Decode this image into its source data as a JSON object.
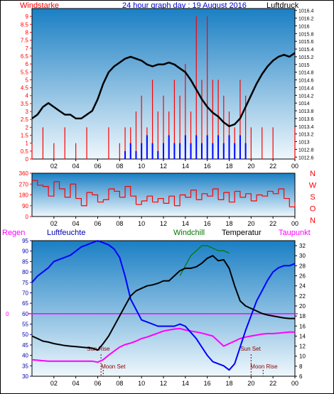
{
  "header": {
    "left_label": "Windstarke",
    "title": "24 hour graph day : 19 August 2016",
    "right_label": "Luftdruck"
  },
  "colors": {
    "panel_top": "#1a7fc4",
    "panel_bottom": "#eef7fc",
    "pressure": "#000000",
    "gust": "#ff0000",
    "wind": "#0000ff",
    "direction": "#ff0000",
    "humidity": "#0000ff",
    "temperature": "#000000",
    "windchill": "#007700",
    "dewpoint": "#ff00ff",
    "rain": "#ff00ff",
    "sun": "#880000",
    "moon": "#880000",
    "axis_red": "#ff0000",
    "axis_blue": "#0000aa",
    "title_blue": "#0000cc"
  },
  "x_ticks": [
    "02",
    "04",
    "06",
    "08",
    "10",
    "12",
    "14",
    "16",
    "18",
    "20",
    "22",
    "00"
  ],
  "chart_data": [
    {
      "type": "line",
      "name": "wind-pressure",
      "left_axis": {
        "label": "Windstarke",
        "ylim": [
          0,
          9.5
        ],
        "ticks": [
          "0",
          "0.5",
          "1",
          "1.5",
          "2",
          "2.5",
          "3",
          "3.5",
          "4",
          "4.5",
          "5",
          "5.5",
          "6",
          "6.5",
          "7",
          "7.5",
          "8",
          "8.5",
          "9"
        ]
      },
      "right_axis": {
        "label": "Luftdruck",
        "ylim": [
          1012.55,
          1016.45
        ],
        "ticks": [
          "1012.6",
          "1012.8",
          "1013",
          "1013.2",
          "1013.4",
          "1013.6",
          "1013.8",
          "1014",
          "1014.2",
          "1014.4",
          "1014.6",
          "1014.8",
          "1015",
          "1015.2",
          "1015.4",
          "1015.6",
          "1015.8",
          "1016",
          "1016.2",
          "1016.4"
        ]
      },
      "xlim": [
        0,
        24
      ],
      "series": [
        {
          "name": "Luftdruck",
          "axis": "right",
          "x": [
            0,
            0.5,
            1,
            1.5,
            2,
            2.5,
            3,
            3.5,
            4,
            4.5,
            5,
            5.5,
            6,
            6.5,
            7,
            7.5,
            8,
            8.5,
            9,
            9.5,
            10,
            10.5,
            11,
            11.5,
            12,
            12.5,
            13,
            13.5,
            14,
            14.5,
            15,
            15.5,
            16,
            16.5,
            17,
            17.5,
            18,
            18.5,
            19,
            19.5,
            20,
            20.5,
            21,
            21.5,
            22,
            22.5,
            23,
            23.5,
            24
          ],
          "y": [
            1013.6,
            1013.7,
            1013.9,
            1014.0,
            1013.9,
            1013.8,
            1013.7,
            1013.7,
            1013.6,
            1013.6,
            1013.7,
            1013.8,
            1014.1,
            1014.5,
            1014.8,
            1014.95,
            1015.05,
            1015.15,
            1015.2,
            1015.15,
            1015.1,
            1015.0,
            1014.95,
            1015.0,
            1015.0,
            1015.05,
            1015.0,
            1014.9,
            1014.8,
            1014.6,
            1014.35,
            1014.1,
            1013.9,
            1013.75,
            1013.65,
            1013.5,
            1013.4,
            1013.45,
            1013.6,
            1013.9,
            1014.2,
            1014.5,
            1014.75,
            1014.95,
            1015.1,
            1015.2,
            1015.25,
            1015.2,
            1015.3
          ]
        },
        {
          "name": "Gust",
          "axis": "left",
          "x": [
            0,
            1,
            2,
            3,
            4,
            5,
            6,
            7,
            8,
            8.5,
            9,
            9.5,
            10,
            10.5,
            11,
            11.5,
            12,
            12.5,
            13,
            13.5,
            14,
            14.5,
            15,
            15.5,
            16,
            16.5,
            17,
            17.5,
            18,
            18.5,
            19,
            19.5,
            20,
            21,
            22,
            23,
            24
          ],
          "y": [
            1,
            2,
            1,
            2,
            1,
            2,
            0,
            2,
            1,
            2,
            2,
            3,
            4,
            2,
            5,
            3,
            4,
            3,
            5,
            4,
            6,
            3,
            9,
            5,
            9,
            5,
            5,
            4,
            3,
            2,
            5,
            4,
            2,
            2,
            2,
            0,
            2
          ]
        },
        {
          "name": "Wind",
          "axis": "left",
          "x": [
            8.5,
            9,
            9.5,
            10,
            10.5,
            11,
            11.5,
            12,
            12.5,
            13,
            13.5,
            14,
            14.5,
            15,
            15.5,
            16,
            16.5,
            17,
            17.5,
            18,
            18.5,
            19,
            19.5
          ],
          "y": [
            0.5,
            1,
            0.5,
            1,
            1.5,
            1,
            0.5,
            1,
            1.5,
            1,
            1,
            1.5,
            1,
            1.5,
            1,
            1.5,
            1,
            1.5,
            1,
            1.5,
            1,
            1.5,
            1
          ]
        }
      ]
    },
    {
      "type": "line",
      "name": "wind-direction",
      "left_axis": {
        "ylim": [
          0,
          360
        ],
        "ticks": [
          "0",
          "90",
          "180",
          "270",
          "360"
        ]
      },
      "right_axis": {
        "labels": [
          "N",
          "W",
          "S",
          "O",
          "N"
        ]
      },
      "xlim": [
        0,
        24
      ],
      "series": [
        {
          "name": "Windrichtung",
          "axis": "left",
          "x": [
            0,
            0.5,
            1,
            1.5,
            2,
            2.5,
            3,
            3.5,
            4,
            4.5,
            5,
            5.5,
            6,
            6.5,
            7,
            7.5,
            8,
            8.5,
            9,
            9.5,
            10,
            10.5,
            11,
            11.5,
            12,
            12.5,
            13,
            13.5,
            14,
            14.5,
            15,
            15.5,
            16,
            16.5,
            17,
            17.5,
            18,
            18.5,
            19,
            19.5,
            20,
            20.5,
            21,
            21.5,
            22,
            22.5,
            23,
            23.5,
            24
          ],
          "y": [
            300,
            260,
            250,
            170,
            290,
            230,
            160,
            270,
            150,
            90,
            200,
            180,
            120,
            140,
            230,
            210,
            160,
            250,
            170,
            100,
            130,
            170,
            120,
            150,
            110,
            170,
            90,
            180,
            160,
            220,
            140,
            190,
            170,
            230,
            140,
            200,
            120,
            210,
            160,
            190,
            130,
            180,
            170,
            210,
            190,
            230,
            150,
            80,
            120
          ]
        }
      ]
    },
    {
      "type": "line",
      "name": "humidity-temperature",
      "left_axis": {
        "label": "Luftfeuchte",
        "ylim": [
          30,
          95
        ],
        "ticks": [
          "30",
          "35",
          "40",
          "45",
          "50",
          "55",
          "60",
          "65",
          "70",
          "75",
          "80",
          "85",
          "90",
          "95"
        ]
      },
      "right_axis": {
        "label": "Temperatur",
        "ylim": [
          6,
          33
        ],
        "ticks": [
          "6",
          "8",
          "10",
          "12",
          "14",
          "16",
          "18",
          "20",
          "22",
          "24",
          "26",
          "28",
          "30",
          "32"
        ]
      },
      "rain_axis": {
        "label": "Regen",
        "tick": "0"
      },
      "xlim": [
        0,
        24
      ],
      "legend": [
        "Regen",
        "Luftfeuchte",
        "Windchill",
        "Temperatur",
        "Taupunkt"
      ],
      "annotations": [
        "Sun Rise",
        "Moon Set",
        "Sun Set",
        "Moon Rise"
      ],
      "series": [
        {
          "name": "Luftfeuchte",
          "axis": "left",
          "x": [
            0,
            0.5,
            1,
            1.5,
            2,
            2.5,
            3,
            3.5,
            4,
            4.5,
            5,
            5.5,
            6,
            6.5,
            7,
            7.5,
            8,
            8.5,
            9,
            9.5,
            10,
            10.5,
            11,
            11.5,
            12,
            12.5,
            13,
            13.5,
            14,
            14.5,
            15,
            15.5,
            16,
            16.5,
            17,
            17.5,
            18,
            18.5,
            19,
            19.5,
            20,
            20.5,
            21,
            21.5,
            22,
            22.5,
            23,
            23.5,
            24
          ],
          "y": [
            75,
            78,
            80,
            82,
            85,
            86,
            87,
            88,
            90,
            92,
            93,
            94,
            95,
            94,
            93,
            91,
            87,
            78,
            67,
            62,
            57,
            56,
            55,
            54,
            54,
            54,
            54,
            55,
            54,
            51,
            48,
            44,
            40,
            37,
            36,
            35,
            33,
            36,
            44,
            52,
            59,
            66,
            71,
            76,
            80,
            82,
            83,
            83,
            84
          ]
        },
        {
          "name": "Temperatur",
          "axis": "right",
          "x": [
            0,
            0.5,
            1,
            1.5,
            2,
            2.5,
            3,
            3.5,
            4,
            4.5,
            5,
            5.5,
            6,
            6.5,
            7,
            7.5,
            8,
            8.5,
            9,
            9.5,
            10,
            10.5,
            11,
            11.5,
            12,
            12.5,
            13,
            13.5,
            14,
            14.5,
            15,
            15.5,
            16,
            16.5,
            17,
            17.5,
            18,
            18.5,
            19,
            19.5,
            20,
            20.5,
            21,
            21.5,
            22,
            22.5,
            23,
            23.5,
            24
          ],
          "y": [
            14,
            13.5,
            13,
            12.8,
            12.5,
            12.3,
            12.1,
            12,
            11.9,
            11.8,
            11.7,
            11.6,
            11.2,
            12.5,
            14,
            16,
            18,
            20,
            22,
            23,
            23.5,
            24,
            24.2,
            24.5,
            25,
            25,
            26,
            27,
            27.5,
            27.5,
            27.8,
            28.5,
            29.5,
            30,
            29,
            29.2,
            27.5,
            24,
            21,
            20,
            19.5,
            19,
            18.5,
            18.2,
            18,
            17.8,
            17.6,
            17.5,
            17.5
          ]
        },
        {
          "name": "Windchill",
          "axis": "right",
          "x": [
            13.5,
            14,
            14.5,
            15,
            15.5,
            16,
            16.5,
            17,
            17.5,
            18
          ],
          "y": [
            26,
            28,
            30,
            31,
            32,
            32,
            31.5,
            31,
            31,
            30.5
          ]
        },
        {
          "name": "Taupunkt",
          "axis": "right",
          "x": [
            0,
            0.5,
            1,
            1.5,
            2,
            2.5,
            3,
            3.5,
            4,
            4.5,
            5,
            5.5,
            6,
            6.5,
            7,
            7.5,
            8,
            8.5,
            9,
            9.5,
            10,
            10.5,
            11,
            11.5,
            12,
            12.5,
            13,
            13.5,
            14,
            14.5,
            15,
            15.5,
            16,
            16.5,
            17,
            17.5,
            18,
            18.5,
            19,
            19.5,
            20,
            20.5,
            21,
            21.5,
            22,
            22.5,
            23,
            23.5,
            24
          ],
          "y": [
            9.3,
            9.2,
            9.1,
            9,
            9,
            9,
            9,
            9,
            9,
            9,
            9,
            9,
            8.8,
            9.3,
            10.2,
            11,
            11.8,
            12.3,
            12.6,
            13,
            13.5,
            13.8,
            14.2,
            14.6,
            15,
            15.2,
            15.4,
            15.5,
            15.2,
            15,
            14.8,
            14.6,
            14.3,
            14,
            13,
            12,
            12.5,
            13,
            13.5,
            13.8,
            14,
            14.2,
            14.4,
            14.5,
            14.5,
            14.6,
            14.7,
            14.8,
            14.8
          ]
        }
      ]
    }
  ]
}
